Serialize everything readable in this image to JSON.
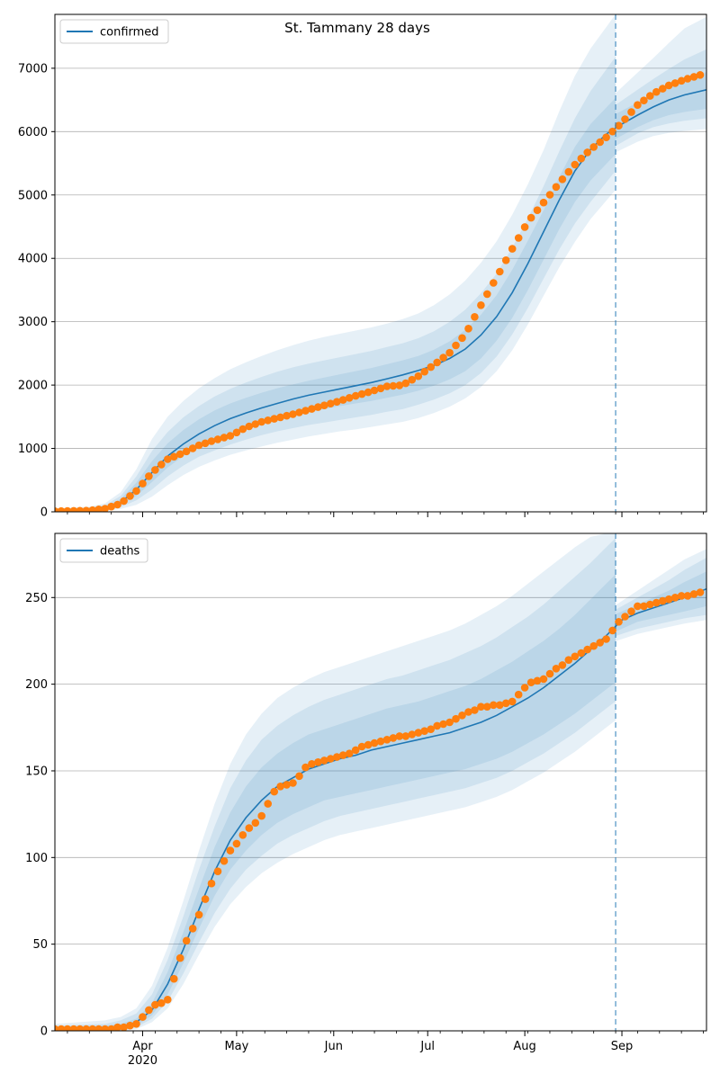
{
  "figure": {
    "title": "St. Tammany 28 days"
  },
  "chart_data": [
    {
      "type": "line",
      "legend": {
        "label": "confirmed",
        "placement": "top-left"
      },
      "ylim": [
        0,
        7850
      ],
      "yticks": [
        0,
        1000,
        2000,
        3000,
        4000,
        5000,
        6000,
        7000
      ],
      "grid": "horizontal",
      "x_range": [
        "2020-03-04",
        "2020-09-28"
      ],
      "forecast_start": "2020-08-30",
      "series": [
        {
          "name": "confirmed",
          "color": "#1f77b4",
          "x": [
            "2020-03-04",
            "2020-03-15",
            "2020-03-20",
            "2020-03-25",
            "2020-03-30",
            "2020-04-04",
            "2020-04-09",
            "2020-04-14",
            "2020-04-19",
            "2020-04-24",
            "2020-04-29",
            "2020-05-04",
            "2020-05-09",
            "2020-05-14",
            "2020-05-19",
            "2020-05-24",
            "2020-05-29",
            "2020-06-03",
            "2020-06-08",
            "2020-06-13",
            "2020-06-18",
            "2020-06-23",
            "2020-06-28",
            "2020-07-03",
            "2020-07-08",
            "2020-07-13",
            "2020-07-18",
            "2020-07-23",
            "2020-07-28",
            "2020-08-02",
            "2020-08-07",
            "2020-08-12",
            "2020-08-17",
            "2020-08-22",
            "2020-08-27",
            "2020-09-01",
            "2020-09-06",
            "2020-09-11",
            "2020-09-16",
            "2020-09-21",
            "2020-09-28"
          ],
          "values": [
            20,
            30,
            60,
            150,
            350,
            620,
            880,
            1070,
            1230,
            1360,
            1470,
            1560,
            1640,
            1710,
            1780,
            1840,
            1890,
            1940,
            1990,
            2040,
            2100,
            2160,
            2230,
            2310,
            2420,
            2570,
            2790,
            3080,
            3460,
            3920,
            4420,
            4920,
            5380,
            5720,
            5960,
            6120,
            6260,
            6390,
            6500,
            6580,
            6660
          ],
          "band_1": {
            "lower": [
              10,
              20,
              40,
              110,
              250,
              470,
              700,
              880,
              1030,
              1150,
              1250,
              1330,
              1400,
              1460,
              1520,
              1580,
              1620,
              1670,
              1710,
              1750,
              1800,
              1850,
              1910,
              1990,
              2090,
              2220,
              2420,
              2700,
              3060,
              3500,
              3980,
              4460,
              4890,
              5230,
              5490,
              5940,
              6070,
              6180,
              6260,
              6310,
              6360
            ],
            "upper": [
              30,
              45,
              80,
              200,
              460,
              800,
              1080,
              1290,
              1460,
              1600,
              1710,
              1800,
              1880,
              1950,
              2010,
              2070,
              2120,
              2170,
              2220,
              2270,
              2330,
              2390,
              2460,
              2560,
              2690,
              2870,
              3110,
              3420,
              3820,
              4280,
              4760,
              5280,
              5760,
              6120,
              6380,
              6330,
              6460,
              6590,
              6730,
              6830,
              6940
            ]
          },
          "band_2": {
            "lower": [
              5,
              12,
              28,
              75,
              180,
              350,
              560,
              730,
              870,
              970,
              1060,
              1140,
              1210,
              1270,
              1320,
              1370,
              1410,
              1450,
              1490,
              1530,
              1580,
              1620,
              1690,
              1770,
              1870,
              2000,
              2190,
              2450,
              2800,
              3220,
              3680,
              4140,
              4550,
              4890,
              5200,
              5830,
              5970,
              6070,
              6130,
              6170,
              6210
            ],
            "upper": [
              40,
              60,
              105,
              250,
              560,
              960,
              1260,
              1490,
              1670,
              1820,
              1940,
              2040,
              2130,
              2210,
              2280,
              2340,
              2390,
              2440,
              2490,
              2540,
              2600,
              2660,
              2740,
              2850,
              3000,
              3190,
              3450,
              3760,
              4170,
              4630,
              5140,
              5690,
              6210,
              6640,
              6980,
              6490,
              6660,
              6830,
              6990,
              7140,
              7300
            ]
          },
          "band_3": {
            "lower": [
              0,
              5,
              15,
              45,
              110,
              240,
              420,
              580,
              710,
              810,
              900,
              970,
              1030,
              1090,
              1140,
              1190,
              1230,
              1270,
              1300,
              1340,
              1380,
              1420,
              1480,
              1560,
              1660,
              1790,
              1970,
              2220,
              2550,
              2960,
              3410,
              3860,
              4260,
              4620,
              4910,
              5720,
              5840,
              5930,
              5980,
              6010,
              6040
            ],
            "upper": [
              55,
              80,
              135,
              310,
              670,
              1150,
              1500,
              1750,
              1950,
              2110,
              2250,
              2360,
              2460,
              2550,
              2630,
              2700,
              2760,
              2810,
              2860,
              2910,
              2970,
              3040,
              3130,
              3260,
              3430,
              3650,
              3930,
              4270,
              4690,
              5170,
              5710,
              6320,
              6880,
              7310,
              7650,
              6700,
              6930,
              7160,
              7400,
              7630,
              7810
            ]
          }
        },
        {
          "name": "",
          "color": "#ff7f0e",
          "x": [
            "2020-03-04",
            "2020-03-15",
            "2020-03-20",
            "2020-03-25",
            "2020-03-30",
            "2020-04-04",
            "2020-04-09",
            "2020-04-14",
            "2020-04-19",
            "2020-04-24",
            "2020-04-29",
            "2020-05-04",
            "2020-05-09",
            "2020-05-14",
            "2020-05-19",
            "2020-05-24",
            "2020-05-29",
            "2020-06-03",
            "2020-06-08",
            "2020-06-13",
            "2020-06-18",
            "2020-06-23",
            "2020-06-28",
            "2020-07-03",
            "2020-07-08",
            "2020-07-13",
            "2020-07-18",
            "2020-07-23",
            "2020-07-28",
            "2020-08-02",
            "2020-08-07",
            "2020-08-12",
            "2020-08-17",
            "2020-08-22",
            "2020-08-27",
            "2020-09-01",
            "2020-09-06",
            "2020-09-11",
            "2020-09-16",
            "2020-09-21",
            "2020-09-27"
          ],
          "values": [
            10,
            20,
            50,
            130,
            330,
            620,
            830,
            930,
            1050,
            1130,
            1200,
            1330,
            1420,
            1480,
            1540,
            1610,
            1680,
            1750,
            1830,
            1900,
            1980,
            2000,
            2140,
            2320,
            2510,
            2800,
            3260,
            3700,
            4150,
            4580,
            4880,
            5190,
            5480,
            5720,
            5910,
            6140,
            6420,
            6600,
            6730,
            6820,
            6910
          ]
        }
      ]
    },
    {
      "type": "line",
      "legend": {
        "label": "deaths",
        "placement": "top-left"
      },
      "ylim": [
        0,
        287
      ],
      "yticks": [
        0,
        50,
        100,
        150,
        200,
        250
      ],
      "grid": "horizontal",
      "x_range": [
        "2020-03-04",
        "2020-09-28"
      ],
      "forecast_start": "2020-08-30",
      "x_ticks": [
        "Apr",
        "May",
        "Jun",
        "Jul",
        "Aug",
        "Sep"
      ],
      "x_tick_dates": [
        "2020-04-01",
        "2020-05-01",
        "2020-06-01",
        "2020-07-01",
        "2020-08-01",
        "2020-09-01"
      ],
      "x_year_label": "2020",
      "series": [
        {
          "name": "deaths",
          "color": "#1f77b4",
          "x": [
            "2020-03-04",
            "2020-03-20",
            "2020-03-25",
            "2020-03-30",
            "2020-04-04",
            "2020-04-09",
            "2020-04-14",
            "2020-04-19",
            "2020-04-24",
            "2020-04-29",
            "2020-05-04",
            "2020-05-09",
            "2020-05-14",
            "2020-05-19",
            "2020-05-24",
            "2020-05-29",
            "2020-06-03",
            "2020-06-08",
            "2020-06-13",
            "2020-06-18",
            "2020-06-23",
            "2020-06-28",
            "2020-07-03",
            "2020-07-08",
            "2020-07-13",
            "2020-07-18",
            "2020-07-23",
            "2020-07-28",
            "2020-08-02",
            "2020-08-07",
            "2020-08-12",
            "2020-08-17",
            "2020-08-22",
            "2020-08-27",
            "2020-09-01",
            "2020-09-06",
            "2020-09-11",
            "2020-09-16",
            "2020-09-21",
            "2020-09-28"
          ],
          "values": [
            1,
            1,
            2,
            5,
            12,
            27,
            47,
            70,
            92,
            110,
            123,
            133,
            141,
            146,
            151,
            154,
            157,
            159,
            162,
            164,
            166,
            168,
            170,
            172,
            175,
            178,
            182,
            187,
            192,
            198,
            205,
            212,
            220,
            228,
            237,
            241,
            244,
            247,
            250,
            255
          ],
          "band_1": {
            "lower": [
              0,
              0,
              1,
              3,
              9,
              21,
              39,
              59,
              78,
              93,
              104,
              113,
              120,
              125,
              129,
              133,
              135,
              137,
              139,
              141,
              143,
              145,
              147,
              149,
              151,
              154,
              157,
              161,
              166,
              171,
              177,
              183,
              190,
              197,
              232,
              236,
              238,
              240,
              242,
              245
            ],
            "upper": [
              2,
              3,
              4,
              7,
              16,
              34,
              57,
              82,
              106,
              126,
              141,
              152,
              160,
              166,
              171,
              174,
              177,
              180,
              183,
              186,
              188,
              190,
              193,
              196,
              199,
              203,
              208,
              213,
              219,
              225,
              232,
              240,
              249,
              258,
              242,
              246,
              250,
              254,
              259,
              265
            ]
          },
          "band_2": {
            "lower": [
              0,
              0,
              0,
              2,
              7,
              17,
              33,
              51,
              68,
              82,
              93,
              101,
              108,
              113,
              117,
              121,
              124,
              126,
              128,
              130,
              132,
              134,
              136,
              138,
              140,
              143,
              146,
              150,
              155,
              160,
              166,
              172,
              179,
              186,
              229,
              232,
              234,
              236,
              238,
              240
            ],
            "upper": [
              3,
              4,
              6,
              10,
              21,
              41,
              66,
              93,
              118,
              140,
              156,
              168,
              176,
              182,
              187,
              191,
              194,
              197,
              200,
              203,
              205,
              208,
              211,
              214,
              218,
              222,
              227,
              233,
              239,
              246,
              254,
              262,
              270,
              279,
              245,
              250,
              255,
              260,
              266,
              273
            ]
          },
          "band_3": {
            "lower": [
              0,
              0,
              0,
              1,
              5,
              13,
              27,
              44,
              60,
              73,
              83,
              91,
              97,
              102,
              106,
              110,
              113,
              115,
              117,
              119,
              121,
              123,
              125,
              127,
              129,
              132,
              135,
              139,
              144,
              149,
              155,
              161,
              168,
              175,
              226,
              229,
              231,
              233,
              235,
              237
            ],
            "upper": [
              4,
              6,
              8,
              13,
              26,
              48,
              75,
              104,
              131,
              154,
              171,
              183,
              192,
              198,
              203,
              207,
              210,
              213,
              216,
              219,
              222,
              225,
              228,
              231,
              235,
              240,
              245,
              251,
              258,
              265,
              272,
              279,
              285,
              287,
              248,
              254,
              260,
              266,
              272,
              278
            ]
          }
        },
        {
          "name": "",
          "color": "#ff7f0e",
          "x": [
            "2020-03-04",
            "2020-03-20",
            "2020-03-25",
            "2020-03-30",
            "2020-04-04",
            "2020-04-09",
            "2020-04-14",
            "2020-04-19",
            "2020-04-24",
            "2020-04-29",
            "2020-05-04",
            "2020-05-09",
            "2020-05-14",
            "2020-05-19",
            "2020-05-24",
            "2020-05-29",
            "2020-06-03",
            "2020-06-08",
            "2020-06-13",
            "2020-06-18",
            "2020-06-23",
            "2020-06-28",
            "2020-07-03",
            "2020-07-08",
            "2020-07-13",
            "2020-07-18",
            "2020-07-23",
            "2020-07-28",
            "2020-08-02",
            "2020-08-07",
            "2020-08-12",
            "2020-08-17",
            "2020-08-22",
            "2020-08-27",
            "2020-09-01",
            "2020-09-06",
            "2020-09-11",
            "2020-09-16",
            "2020-09-21",
            "2020-09-27"
          ],
          "values": [
            1,
            1,
            2,
            4,
            14,
            18,
            48,
            67,
            89,
            104,
            115,
            124,
            141,
            143,
            154,
            156,
            158,
            162,
            166,
            168,
            170,
            172,
            175,
            178,
            183,
            187,
            188,
            190,
            200,
            203,
            210,
            216,
            221,
            226,
            238,
            245,
            246,
            249,
            251,
            253
          ]
        }
      ]
    }
  ]
}
